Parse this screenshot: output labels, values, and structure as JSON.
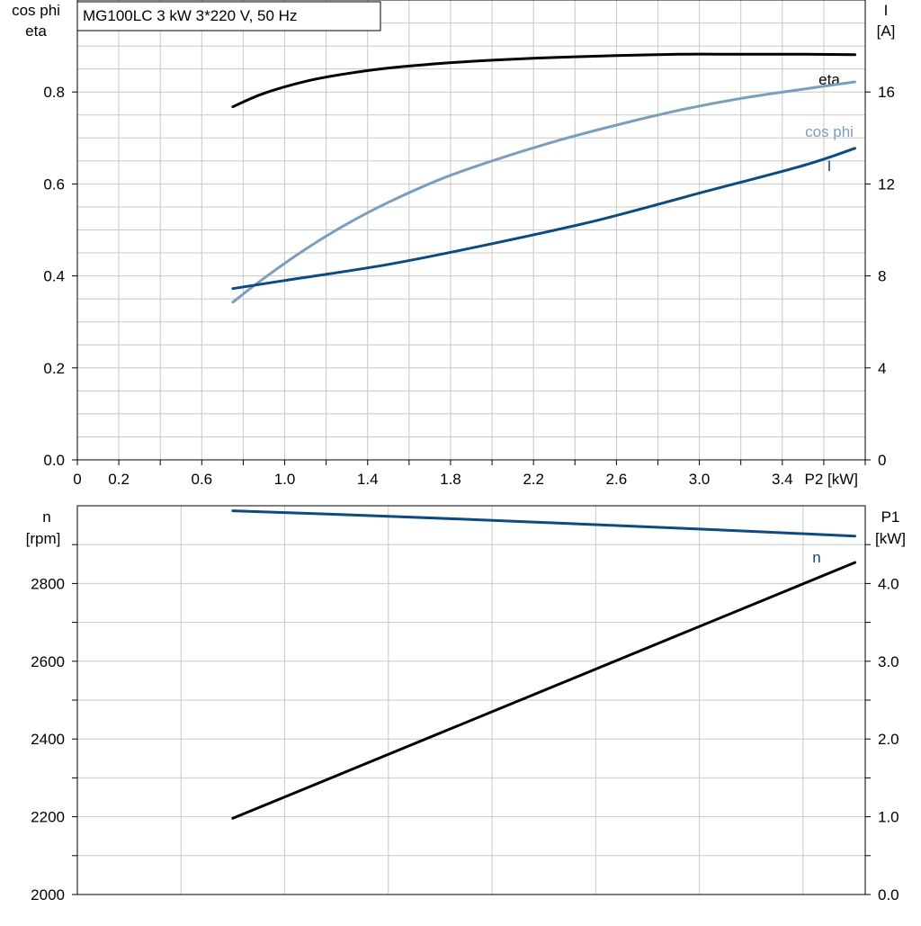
{
  "legend": {
    "text": "MG100LC   3 kW   3*220 V, 50 Hz"
  },
  "colors": {
    "eta": "#000000",
    "cos_phi": "#7a9ebd",
    "I": "#0d4a80",
    "n": "#0d4a80",
    "P1": "#000000"
  },
  "chart_data": [
    {
      "type": "line",
      "xlabel": "P2 [kW]",
      "ylabel_left": [
        "cos phi",
        "eta"
      ],
      "ylabel_right": [
        "I",
        "[A]"
      ],
      "xlim": [
        0,
        3.8
      ],
      "ylim_left": [
        0,
        1.0
      ],
      "ylim_right": [
        0,
        20
      ],
      "x_ticks": [
        0,
        0.2,
        0.6,
        1.0,
        1.4,
        1.8,
        2.2,
        2.6,
        3.0,
        3.4
      ],
      "y_ticks_left": [
        0.0,
        0.2,
        0.4,
        0.6,
        0.8
      ],
      "y_ticks_right": [
        0,
        4,
        8,
        12,
        16
      ],
      "grid": true,
      "series": [
        {
          "name": "eta",
          "axis": "left",
          "color": "#000000",
          "x": [
            0.75,
            0.9,
            1.1,
            1.3,
            1.5,
            1.75,
            2.0,
            2.3,
            2.6,
            2.9,
            3.2,
            3.5,
            3.75
          ],
          "y": [
            0.768,
            0.797,
            0.823,
            0.84,
            0.852,
            0.862,
            0.869,
            0.875,
            0.879,
            0.882,
            0.882,
            0.882,
            0.881
          ]
        },
        {
          "name": "cos phi",
          "axis": "left",
          "color": "#7a9ebd",
          "x": [
            0.75,
            0.9,
            1.1,
            1.3,
            1.5,
            1.75,
            2.0,
            2.3,
            2.6,
            2.9,
            3.2,
            3.5,
            3.75
          ],
          "y": [
            0.343,
            0.395,
            0.458,
            0.513,
            0.56,
            0.61,
            0.65,
            0.692,
            0.728,
            0.76,
            0.786,
            0.806,
            0.822
          ]
        },
        {
          "name": "I",
          "axis": "right",
          "color": "#0d4a80",
          "x": [
            0.75,
            1.0,
            1.5,
            2.0,
            2.5,
            3.0,
            3.5,
            3.75
          ],
          "y": [
            7.45,
            7.8,
            8.5,
            9.4,
            10.4,
            11.6,
            12.8,
            13.55
          ]
        }
      ]
    },
    {
      "type": "line",
      "xlabel": "",
      "ylabel_left": [
        "n",
        "[rpm]"
      ],
      "ylabel_right": [
        "P1",
        "[kW]"
      ],
      "xlim": [
        0,
        3.8
      ],
      "ylim_left": [
        2000,
        3000
      ],
      "ylim_right": [
        0,
        5.0
      ],
      "y_ticks_left": [
        2000,
        2200,
        2400,
        2600,
        2800
      ],
      "y_ticks_right": [
        0.0,
        1.0,
        2.0,
        3.0,
        4.0
      ],
      "grid": true,
      "series": [
        {
          "name": "n",
          "axis": "left",
          "color": "#0d4a80",
          "x": [
            0.75,
            1.5,
            2.25,
            3.0,
            3.75
          ],
          "y": [
            2987,
            2973,
            2957,
            2940,
            2922
          ]
        },
        {
          "name": "",
          "axis": "right",
          "color": "#000000",
          "x": [
            0.75,
            3.75
          ],
          "y": [
            0.98,
            4.27
          ]
        }
      ]
    }
  ]
}
